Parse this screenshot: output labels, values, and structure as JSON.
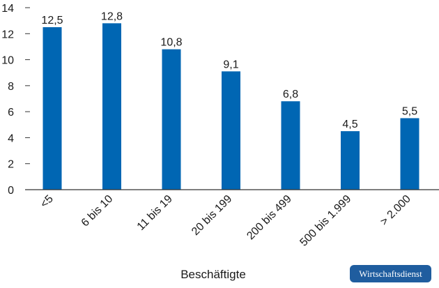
{
  "chart_data": {
    "type": "bar",
    "categories": [
      "<5",
      "6 bis 10",
      "11 bis 19",
      "20 bis 199",
      "200 bis 499",
      "500 bis 1.999",
      "> 2.000"
    ],
    "values": [
      12.5,
      12.8,
      10.8,
      9.1,
      6.8,
      4.5,
      5.5
    ],
    "value_labels": [
      "12,5",
      "12,8",
      "10,8",
      "9,1",
      "6,8",
      "4,5",
      "5,5"
    ],
    "ylim": [
      0,
      14
    ],
    "yticks": [
      0,
      2,
      4,
      6,
      8,
      10,
      12,
      14
    ],
    "xlabel": "Beschäftigte",
    "ylabel": "",
    "title": "",
    "grid": false,
    "bar_color": "#0066b3"
  },
  "source_badge": "Wirtschaftsdienst"
}
